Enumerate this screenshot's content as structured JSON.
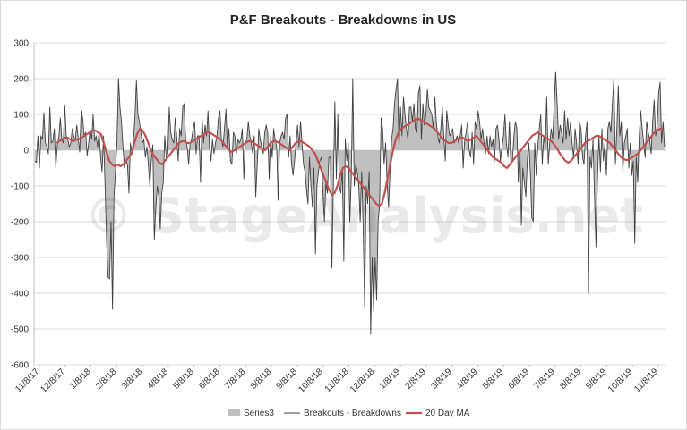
{
  "chart_data": {
    "type": "line",
    "title": "P&F Breakouts - Breakdowns in US",
    "watermark": "© StageAnalysis.net",
    "xlabel": "",
    "ylabel": "",
    "ylim": [
      -600,
      300
    ],
    "yticks": [
      300,
      200,
      100,
      0,
      -100,
      -200,
      -300,
      -400,
      -500,
      -600
    ],
    "xticks": [
      "11/8/17",
      "12/8/17",
      "1/8/18",
      "2/8/18",
      "3/8/18",
      "4/8/18",
      "5/8/18",
      "6/8/18",
      "7/8/18",
      "8/8/18",
      "9/8/18",
      "10/8/18",
      "11/8/18",
      "12/8/18",
      "1/8/19",
      "2/8/19",
      "3/8/19",
      "4/8/19",
      "5/8/19",
      "6/8/19",
      "7/8/19",
      "8/8/19",
      "9/8/19",
      "10/8/19",
      "11/8/19"
    ],
    "grid": true,
    "legend_position": "bottom",
    "colors": {
      "area": "#bfbfbf",
      "line": "#404040",
      "ma": "#c0504d",
      "grid": "#d9d9d9"
    },
    "series": [
      {
        "name": "Series3",
        "kind": "area",
        "note": "same daily values as Breakouts - Breakdowns, drawn as a grey filled area"
      },
      {
        "name": "Breakouts - Breakdowns",
        "kind": "line",
        "approx_daily_values": [
          -30,
          -35,
          40,
          -50,
          40,
          30,
          105,
          20,
          10,
          -10,
          120,
          20,
          25,
          60,
          -50,
          15,
          35,
          90,
          30,
          20,
          125,
          40,
          30,
          10,
          20,
          60,
          40,
          25,
          70,
          35,
          -5,
          110,
          90,
          40,
          50,
          -15,
          20,
          60,
          30,
          100,
          25,
          40,
          10,
          50,
          -20,
          -60,
          40,
          -100,
          -250,
          -355,
          -360,
          -200,
          -445,
          -130,
          -60,
          30,
          200,
          120,
          80,
          10,
          -50,
          -30,
          -40,
          -120,
          20,
          -10,
          30,
          90,
          195,
          100,
          80,
          50,
          20,
          30,
          -20,
          10,
          -40,
          -100,
          -30,
          15,
          -250,
          -160,
          -100,
          -130,
          -220,
          -120,
          -90,
          40,
          -20,
          -10,
          120,
          50,
          30,
          20,
          90,
          40,
          -30,
          60,
          40,
          120,
          130,
          30,
          10,
          -40,
          20,
          30,
          60,
          80,
          -10,
          40,
          40,
          -90,
          90,
          20,
          70,
          40,
          110,
          10,
          -30,
          30,
          -10,
          20,
          40,
          90,
          110,
          30,
          10,
          60,
          115,
          10,
          60,
          -30,
          -40,
          50,
          40,
          -10,
          30,
          20,
          30,
          60,
          -80,
          20,
          30,
          80,
          40,
          20,
          -10,
          40,
          -130,
          -40,
          60,
          30,
          10,
          -10,
          50,
          70,
          50,
          -80,
          40,
          -20,
          60,
          30,
          10,
          -140,
          20,
          40,
          50,
          30,
          90,
          100,
          -20,
          40,
          -40,
          -70,
          -30,
          20,
          70,
          10,
          80,
          20,
          -40,
          -60,
          -110,
          -150,
          -20,
          -100,
          -160,
          -50,
          -290,
          -100,
          -60,
          -30,
          -20,
          -120,
          -200,
          -90,
          -120,
          -20,
          -20,
          -330,
          -100,
          135,
          -80,
          100,
          -100,
          -120,
          -50,
          -310,
          30,
          -30,
          20,
          -200,
          -80,
          200,
          -100,
          -40,
          -60,
          -100,
          -200,
          -60,
          -220,
          -440,
          -100,
          -150,
          -60,
          -515,
          -300,
          -450,
          -300,
          -420,
          -200,
          -150,
          90,
          60,
          -40,
          20,
          -90,
          -160,
          -60,
          30,
          60,
          130,
          170,
          200,
          10,
          120,
          40,
          150,
          100,
          60,
          30,
          120,
          120,
          80,
          130,
          60,
          50,
          160,
          180,
          30,
          130,
          70,
          100,
          170,
          120,
          110,
          100,
          60,
          150,
          80,
          40,
          20,
          60,
          120,
          40,
          -30,
          110,
          70,
          40,
          50,
          60,
          20,
          30,
          40,
          20,
          40,
          70,
          -50,
          30,
          50,
          80,
          0,
          -20,
          50,
          -40,
          80,
          60,
          110,
          80,
          30,
          60,
          20,
          -10,
          40,
          -10,
          40,
          10,
          30,
          -30,
          60,
          70,
          30,
          -30,
          10,
          40,
          100,
          20,
          -20,
          80,
          -40,
          -30,
          40,
          80,
          60,
          -90,
          10,
          -210,
          -50,
          -90,
          -130,
          -30,
          20,
          -60,
          -190,
          -200,
          20,
          -70,
          10,
          60,
          100,
          -40,
          40,
          10,
          150,
          -40,
          20,
          60,
          30,
          130,
          220,
          130,
          30,
          70,
          50,
          20,
          110,
          30,
          90,
          40,
          80,
          20,
          -20,
          60,
          20,
          -40,
          80,
          60,
          -20,
          -40,
          40,
          80,
          -400,
          -20,
          -50,
          30,
          -120,
          -270,
          -80,
          40,
          -60,
          60,
          -30,
          20,
          -70,
          60,
          80,
          50,
          130,
          200,
          -40,
          60,
          180,
          40,
          80,
          -60,
          20,
          40,
          60,
          -50,
          20,
          -70,
          -30,
          -260,
          -20,
          -90,
          40,
          110,
          60,
          20,
          -20,
          80,
          50,
          30,
          -10,
          80,
          140,
          40,
          70,
          160,
          190,
          20,
          80,
          10
        ]
      },
      {
        "name": "20 Day MA",
        "kind": "line",
        "approx_values": [
          20,
          25,
          30,
          35,
          35,
          30,
          25,
          30,
          30,
          35,
          40,
          45,
          50,
          55,
          55,
          50,
          45,
          20,
          -5,
          -30,
          -40,
          -45,
          -40,
          -45,
          -40,
          -30,
          -20,
          -10,
          20,
          45,
          60,
          55,
          40,
          20,
          0,
          -15,
          -25,
          -35,
          -40,
          -30,
          -20,
          -10,
          0,
          10,
          20,
          25,
          25,
          20,
          20,
          25,
          30,
          35,
          40,
          45,
          50,
          50,
          45,
          40,
          35,
          30,
          20,
          10,
          0,
          -5,
          0,
          5,
          10,
          15,
          20,
          25,
          25,
          20,
          15,
          10,
          5,
          0,
          10,
          20,
          25,
          25,
          20,
          15,
          10,
          5,
          0,
          10,
          20,
          25,
          25,
          20,
          15,
          10,
          0,
          -10,
          -30,
          -50,
          -70,
          -90,
          -110,
          -125,
          -120,
          -100,
          -70,
          -50,
          -45,
          -50,
          -60,
          -70,
          -80,
          -90,
          -100,
          -110,
          -120,
          -130,
          -140,
          -150,
          -155,
          -150,
          -120,
          -80,
          -40,
          0,
          30,
          50,
          60,
          65,
          70,
          75,
          80,
          85,
          88,
          85,
          80,
          75,
          70,
          65,
          60,
          50,
          40,
          30,
          25,
          20,
          20,
          25,
          30,
          35,
          35,
          30,
          25,
          30,
          35,
          40,
          30,
          20,
          10,
          0,
          -10,
          -20,
          -25,
          -30,
          -35,
          -45,
          -50,
          -40,
          -30,
          -20,
          -10,
          0,
          10,
          20,
          30,
          40,
          45,
          50,
          45,
          40,
          35,
          30,
          25,
          15,
          5,
          -10,
          -20,
          -30,
          -35,
          -30,
          -20,
          -10,
          0,
          10,
          20,
          25,
          30,
          35,
          40,
          40,
          35,
          30,
          25,
          20,
          10,
          0,
          -10,
          -20,
          -25,
          -28,
          -25,
          -20,
          -15,
          -10,
          0,
          10,
          20,
          30,
          40,
          50,
          55,
          60,
          58
        ]
      }
    ]
  }
}
